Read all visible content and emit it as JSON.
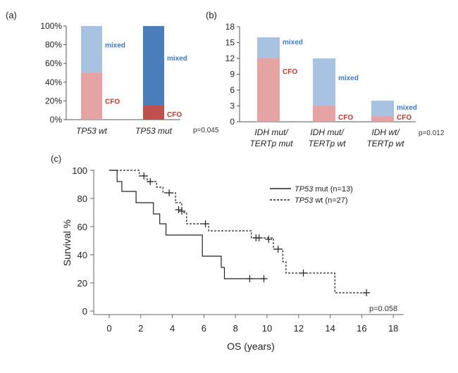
{
  "panel_labels": {
    "a": "(a)",
    "b": "(b)",
    "c": "(c)"
  },
  "colors": {
    "mixed_light": "#a8c3e1",
    "mixed_dark": "#4a7ebb",
    "cfo_light": "#e6a3a3",
    "cfo_dark": "#c0504d",
    "mixed_text": "#3f7bc0",
    "cfo_text": "#c0392b"
  },
  "chart_data": [
    {
      "id": "a",
      "type": "bar",
      "stacked": true,
      "categories": [
        "TP53 wt",
        "TP53 mut"
      ],
      "series": [
        {
          "name": "CFO",
          "values": [
            50,
            15
          ]
        },
        {
          "name": "mixed",
          "values": [
            50,
            85
          ]
        }
      ],
      "yticks": [
        "0%",
        "20%",
        "40%",
        "60%",
        "80%",
        "100%"
      ],
      "ylim": [
        0,
        100
      ],
      "pvalue": "p=0.045"
    },
    {
      "id": "b",
      "type": "bar",
      "stacked": true,
      "categories": [
        {
          "line1": "IDH mut/",
          "line2": "TERTp mut"
        },
        {
          "line1": "IDH mut/",
          "line2": "TERTp wt"
        },
        {
          "line1": "IDH wt/",
          "line2": "TERTp wt"
        }
      ],
      "series": [
        {
          "name": "CFO",
          "values": [
            12,
            3,
            1
          ]
        },
        {
          "name": "mixed",
          "values": [
            4,
            9,
            3
          ]
        }
      ],
      "yticks": [
        "0",
        "3",
        "6",
        "9",
        "12",
        "15",
        "18"
      ],
      "ylim": [
        0,
        18
      ],
      "pvalue": "p=0.012"
    },
    {
      "id": "c",
      "type": "line",
      "step": true,
      "ylabel": "Survival %",
      "xlabel": "OS (years)",
      "xlim": [
        0,
        18
      ],
      "ylim": [
        0,
        100
      ],
      "xticks": [
        "0",
        "2",
        "4",
        "6",
        "8",
        "10",
        "12",
        "14",
        "16",
        "18"
      ],
      "yticks": [
        "0",
        "20",
        "40",
        "60",
        "80",
        "100"
      ],
      "series": [
        {
          "name": "TP53 mut (n=13)",
          "label_gene": "TP53",
          "label_rest": " mut (n=13)",
          "style": "solid",
          "steps": [
            [
              0,
              100
            ],
            [
              0.5,
              92
            ],
            [
              0.8,
              85
            ],
            [
              1.7,
              77
            ],
            [
              2.8,
              69
            ],
            [
              3.2,
              62
            ],
            [
              3.6,
              54
            ],
            [
              5.9,
              39
            ],
            [
              7.1,
              31
            ],
            [
              7.3,
              23
            ],
            [
              9.9,
              23
            ]
          ],
          "censored": [
            [
              8.9,
              23
            ],
            [
              9.8,
              23
            ]
          ]
        },
        {
          "name": "TP53 wt (n=27)",
          "label_gene": "TP53",
          "label_rest": " wt (n=27)",
          "style": "dashed",
          "steps": [
            [
              0,
              100
            ],
            [
              1.9,
              96
            ],
            [
              2.4,
              92
            ],
            [
              3.0,
              88
            ],
            [
              3.4,
              84
            ],
            [
              4.2,
              77
            ],
            [
              4.6,
              70
            ],
            [
              4.9,
              62
            ],
            [
              6.3,
              57
            ],
            [
              9.0,
              52
            ],
            [
              10.4,
              44
            ],
            [
              11.0,
              35
            ],
            [
              11.2,
              27
            ],
            [
              14.3,
              13
            ],
            [
              16.3,
              13
            ]
          ],
          "censored": [
            [
              2.2,
              96
            ],
            [
              2.6,
              92
            ],
            [
              3.8,
              84
            ],
            [
              4.4,
              72
            ],
            [
              4.6,
              71
            ],
            [
              6.1,
              62
            ],
            [
              9.3,
              52
            ],
            [
              9.5,
              52
            ],
            [
              10.1,
              51
            ],
            [
              10.7,
              44
            ],
            [
              12.3,
              27
            ],
            [
              16.3,
              13
            ]
          ]
        }
      ],
      "pvalue": "p=0.058"
    }
  ]
}
